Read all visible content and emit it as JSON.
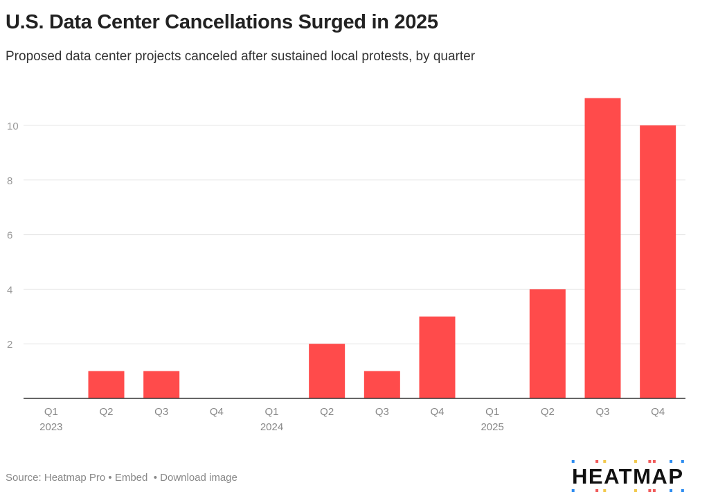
{
  "title": "U.S. Data Center Cancellations Surged in 2025",
  "subtitle": "Proposed data center projects canceled after sustained local protests, by quarter",
  "chart_data": {
    "type": "bar",
    "categories": [
      "Q1 2023",
      "Q2 2023",
      "Q3 2023",
      "Q4 2023",
      "Q1 2024",
      "Q2 2024",
      "Q3 2024",
      "Q4 2024",
      "Q1 2025",
      "Q2 2025",
      "Q3 2025",
      "Q4 2025"
    ],
    "tick_labels": [
      [
        "Q1",
        "2023"
      ],
      [
        "Q2",
        ""
      ],
      [
        "Q3",
        ""
      ],
      [
        "Q4",
        ""
      ],
      [
        "Q1",
        "2024"
      ],
      [
        "Q2",
        ""
      ],
      [
        "Q3",
        ""
      ],
      [
        "Q4",
        ""
      ],
      [
        "Q1",
        "2025"
      ],
      [
        "Q2",
        ""
      ],
      [
        "Q3",
        ""
      ],
      [
        "Q4",
        ""
      ]
    ],
    "values": [
      0,
      1,
      1,
      0,
      0,
      2,
      1,
      3,
      0,
      4,
      11,
      10
    ],
    "yticks": [
      2,
      4,
      6,
      8,
      10
    ],
    "ylim": [
      0,
      11
    ],
    "grid": true,
    "bar_color": "#ff4b4b",
    "title": "U.S. Data Center Cancellations Surged in 2025",
    "subtitle": "Proposed data center projects canceled after sustained local protests, by quarter",
    "xlabel": "",
    "ylabel": ""
  },
  "footer": {
    "source": "Source: Heatmap Pro",
    "sep": " • ",
    "embed": "Embed",
    "download": "Download image"
  },
  "logo": {
    "text": "HEATMAP",
    "colors": [
      "#2d8cf0",
      "#f05a5a",
      "#f2c94c"
    ]
  }
}
